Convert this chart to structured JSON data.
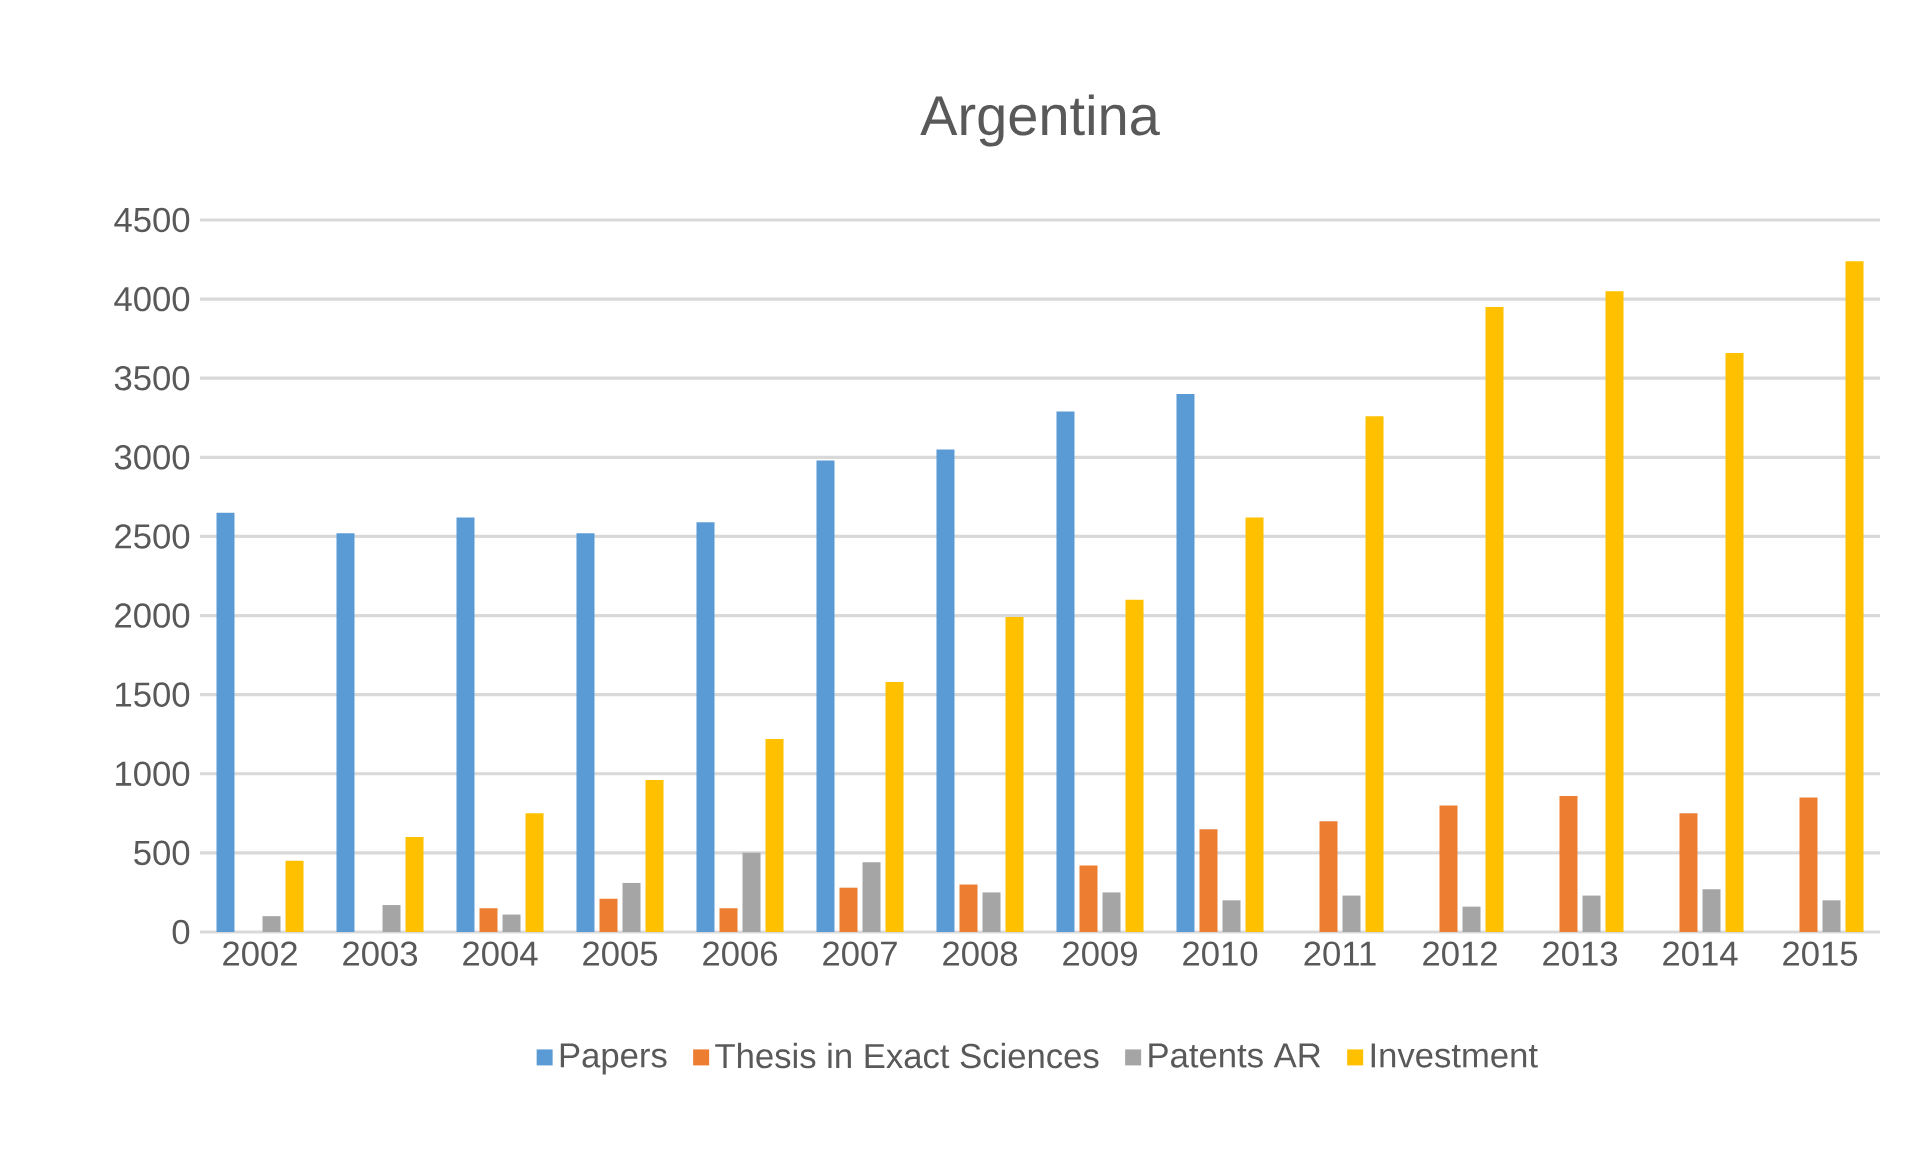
{
  "chart_data": {
    "type": "bar",
    "title": "Argentina",
    "categories": [
      "2002",
      "2003",
      "2004",
      "2005",
      "2006",
      "2007",
      "2008",
      "2009",
      "2010",
      "2011",
      "2012",
      "2013",
      "2014",
      "2015"
    ],
    "series": [
      {
        "name": "Papers",
        "color": "#5b9bd5",
        "values": [
          2650,
          2520,
          2620,
          2520,
          2590,
          2980,
          3050,
          3290,
          3400,
          null,
          null,
          null,
          null,
          null
        ]
      },
      {
        "name": "Thesis in Exact Sciences",
        "color": "#ed7d31",
        "values": [
          null,
          null,
          150,
          210,
          150,
          280,
          300,
          420,
          650,
          700,
          800,
          860,
          750,
          850
        ]
      },
      {
        "name": "Patents AR",
        "color": "#a5a5a5",
        "values": [
          100,
          170,
          110,
          310,
          500,
          440,
          250,
          250,
          200,
          230,
          160,
          230,
          270,
          200
        ]
      },
      {
        "name": "Investment",
        "color": "#ffc000",
        "values": [
          450,
          600,
          750,
          960,
          1220,
          1580,
          1990,
          2100,
          2620,
          3260,
          3950,
          4050,
          3660,
          4240
        ]
      }
    ],
    "ylim": [
      0,
      4500
    ],
    "yticks": [
      0,
      500,
      1000,
      1500,
      2000,
      2500,
      3000,
      3500,
      4000,
      4500
    ],
    "grid": "y",
    "legend": "bottom"
  }
}
